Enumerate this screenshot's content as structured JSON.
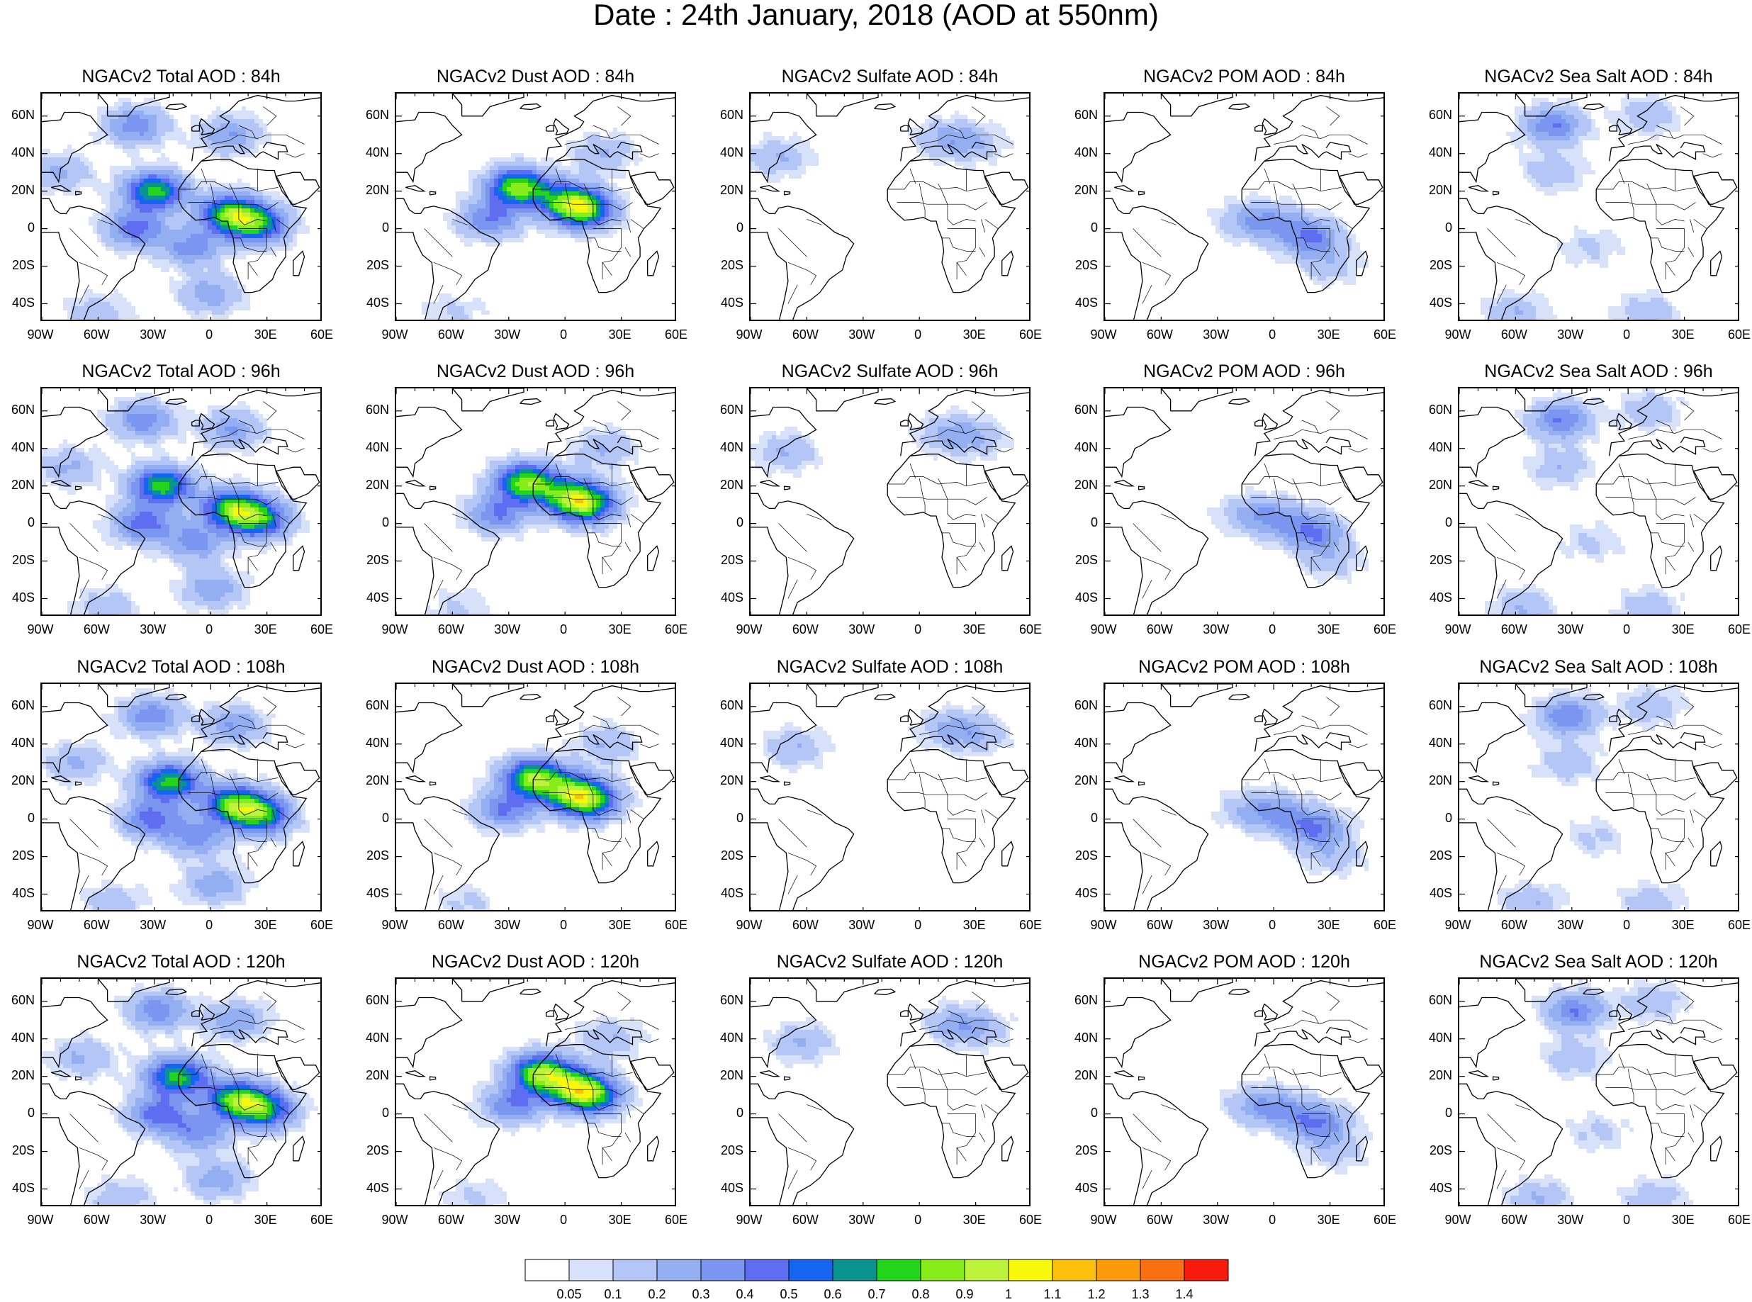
{
  "title": "Date : 24th January, 2018 (AOD at 550nm)",
  "panel_titles": [
    [
      "NGACv2 Total AOD : 84h",
      "NGACv2 Dust AOD : 84h",
      "NGACv2 Sulfate AOD : 84h",
      "NGACv2 POM AOD : 84h",
      "NGACv2 Sea Salt AOD : 84h"
    ],
    [
      "NGACv2 Total AOD : 96h",
      "NGACv2 Dust AOD : 96h",
      "NGACv2 Sulfate AOD : 96h",
      "NGACv2 POM AOD : 96h",
      "NGACv2 Sea Salt AOD : 96h"
    ],
    [
      "NGACv2 Total AOD : 108h",
      "NGACv2 Dust AOD : 108h",
      "NGACv2 Sulfate AOD : 108h",
      "NGACv2 POM AOD : 108h",
      "NGACv2 Sea Salt AOD : 108h"
    ],
    [
      "NGACv2 Total AOD : 120h",
      "NGACv2 Dust AOD : 120h",
      "NGACv2 Sulfate AOD : 120h",
      "NGACv2 POM AOD : 120h",
      "NGACv2 Sea Salt  AOD : 120h"
    ]
  ],
  "lat_labels": [
    "60N",
    "40N",
    "20N",
    "0",
    "20S",
    "40S"
  ],
  "lon_labels": [
    "90W",
    "60W",
    "30W",
    "0",
    "30E",
    "60E"
  ],
  "colorbar": {
    "labels": [
      "0.05",
      "0.1",
      "0.2",
      "0.3",
      "0.4",
      "0.5",
      "0.6",
      "0.7",
      "0.8",
      "0.9",
      "1",
      "1.1",
      "1.2",
      "1.3",
      "1.4"
    ],
    "colors": [
      "#ffffff",
      "#d7e1fa",
      "#b4c6f5",
      "#94aef2",
      "#7b96f0",
      "#5f6ef0",
      "#1565f0",
      "#0a9490",
      "#22d41a",
      "#86ec1a",
      "#bcf43c",
      "#f8f80a",
      "#fcc00a",
      "#fc9a0a",
      "#f87012",
      "#f81a0a"
    ]
  },
  "aerosol_blobs": {
    "total": [
      [
        [
          0,
          -35,
          0.28
        ],
        [
          -30,
          20,
          0.75
        ],
        [
          10,
          8,
          0.75
        ],
        [
          25,
          2,
          0.65
        ],
        [
          -40,
          0,
          0.45
        ],
        [
          -40,
          55,
          0.38
        ],
        [
          10,
          50,
          0.3
        ],
        [
          -60,
          -45,
          0.18
        ],
        [
          -80,
          30,
          0.22
        ],
        [
          -10,
          -10,
          0.35
        ]
      ]
    ],
    "dust": [
      [
        [
          -25,
          22,
          0.85
        ],
        [
          10,
          10,
          0.75
        ],
        [
          -40,
          5,
          0.4
        ],
        [
          0,
          15,
          0.5
        ],
        [
          20,
          40,
          0.2
        ],
        [
          -60,
          -45,
          0.12
        ]
      ]
    ],
    "sulfate": [
      [
        [
          15,
          48,
          0.22
        ],
        [
          -75,
          38,
          0.2
        ],
        [
          30,
          45,
          0.15
        ]
      ]
    ],
    "pom": [
      [
        [
          20,
          -5,
          0.4
        ],
        [
          0,
          3,
          0.25
        ],
        [
          -15,
          5,
          0.18
        ],
        [
          30,
          -20,
          0.15
        ]
      ]
    ],
    "seasalt": [
      [
        [
          -40,
          55,
          0.4
        ],
        [
          -40,
          30,
          0.18
        ],
        [
          -60,
          -45,
          0.2
        ],
        [
          10,
          -45,
          0.18
        ],
        [
          -20,
          -10,
          0.12
        ],
        [
          10,
          60,
          0.18
        ]
      ]
    ]
  }
}
